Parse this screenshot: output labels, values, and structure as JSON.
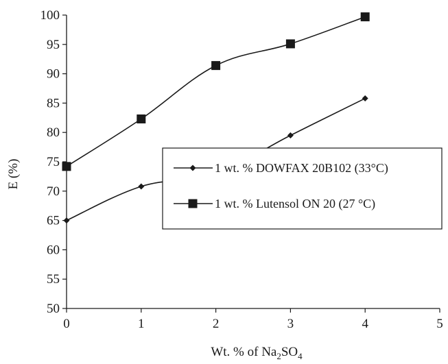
{
  "chart_data": {
    "type": "line",
    "title": "",
    "xlabel": "Wt. % of Na",
    "xlabel_sub": "2",
    "xlabel_mid": "SO",
    "xlabel_sub2": "4",
    "ylabel": "E (%)",
    "xlim": [
      0,
      5
    ],
    "ylim": [
      50,
      100
    ],
    "x_ticks": [
      "0",
      "1",
      "2",
      "3",
      "4",
      "5"
    ],
    "y_ticks": [
      "50",
      "55",
      "60",
      "65",
      "70",
      "75",
      "80",
      "85",
      "90",
      "95",
      "100"
    ],
    "grid": false,
    "legend_position": "bottom-right",
    "x": [
      0,
      1,
      2,
      3,
      4
    ],
    "series": [
      {
        "name": "1 wt. % DOWFAX 20B102 (33°C)",
        "marker": "diamond",
        "color": "#1a1a1a",
        "values": [
          65,
          70.8,
          73,
          79.5,
          85.8
        ]
      },
      {
        "name": "1 wt. % Lutensol ON 20 (27 °C)",
        "marker": "square",
        "color": "#1a1a1a",
        "values": [
          74.2,
          82.3,
          91.4,
          95.1,
          99.7
        ]
      }
    ]
  }
}
